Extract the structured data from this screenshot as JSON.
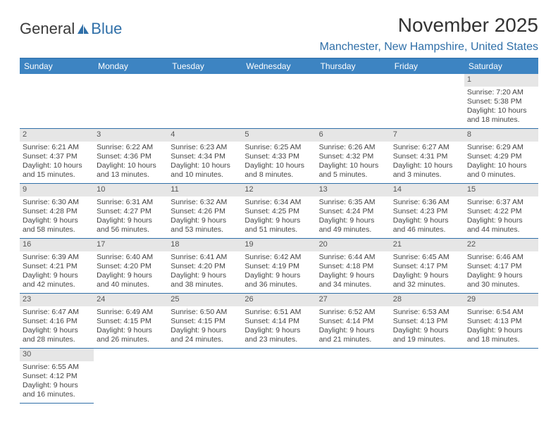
{
  "logo": {
    "text1": "General",
    "text2": "Blue"
  },
  "title": "November 2025",
  "location": "Manchester, New Hampshire, United States",
  "colors": {
    "header_bg": "#3d84c2",
    "header_text": "#ffffff",
    "accent": "#2f6fa8",
    "daynum_bg": "#e6e6e6",
    "text": "#333333"
  },
  "day_headers": [
    "Sunday",
    "Monday",
    "Tuesday",
    "Wednesday",
    "Thursday",
    "Friday",
    "Saturday"
  ],
  "first_weekday_index": 6,
  "days": [
    {
      "n": 1,
      "sunrise": "7:20 AM",
      "sunset": "5:38 PM",
      "daylight": "10 hours and 18 minutes."
    },
    {
      "n": 2,
      "sunrise": "6:21 AM",
      "sunset": "4:37 PM",
      "daylight": "10 hours and 15 minutes."
    },
    {
      "n": 3,
      "sunrise": "6:22 AM",
      "sunset": "4:36 PM",
      "daylight": "10 hours and 13 minutes."
    },
    {
      "n": 4,
      "sunrise": "6:23 AM",
      "sunset": "4:34 PM",
      "daylight": "10 hours and 10 minutes."
    },
    {
      "n": 5,
      "sunrise": "6:25 AM",
      "sunset": "4:33 PM",
      "daylight": "10 hours and 8 minutes."
    },
    {
      "n": 6,
      "sunrise": "6:26 AM",
      "sunset": "4:32 PM",
      "daylight": "10 hours and 5 minutes."
    },
    {
      "n": 7,
      "sunrise": "6:27 AM",
      "sunset": "4:31 PM",
      "daylight": "10 hours and 3 minutes."
    },
    {
      "n": 8,
      "sunrise": "6:29 AM",
      "sunset": "4:29 PM",
      "daylight": "10 hours and 0 minutes."
    },
    {
      "n": 9,
      "sunrise": "6:30 AM",
      "sunset": "4:28 PM",
      "daylight": "9 hours and 58 minutes."
    },
    {
      "n": 10,
      "sunrise": "6:31 AM",
      "sunset": "4:27 PM",
      "daylight": "9 hours and 56 minutes."
    },
    {
      "n": 11,
      "sunrise": "6:32 AM",
      "sunset": "4:26 PM",
      "daylight": "9 hours and 53 minutes."
    },
    {
      "n": 12,
      "sunrise": "6:34 AM",
      "sunset": "4:25 PM",
      "daylight": "9 hours and 51 minutes."
    },
    {
      "n": 13,
      "sunrise": "6:35 AM",
      "sunset": "4:24 PM",
      "daylight": "9 hours and 49 minutes."
    },
    {
      "n": 14,
      "sunrise": "6:36 AM",
      "sunset": "4:23 PM",
      "daylight": "9 hours and 46 minutes."
    },
    {
      "n": 15,
      "sunrise": "6:37 AM",
      "sunset": "4:22 PM",
      "daylight": "9 hours and 44 minutes."
    },
    {
      "n": 16,
      "sunrise": "6:39 AM",
      "sunset": "4:21 PM",
      "daylight": "9 hours and 42 minutes."
    },
    {
      "n": 17,
      "sunrise": "6:40 AM",
      "sunset": "4:20 PM",
      "daylight": "9 hours and 40 minutes."
    },
    {
      "n": 18,
      "sunrise": "6:41 AM",
      "sunset": "4:20 PM",
      "daylight": "9 hours and 38 minutes."
    },
    {
      "n": 19,
      "sunrise": "6:42 AM",
      "sunset": "4:19 PM",
      "daylight": "9 hours and 36 minutes."
    },
    {
      "n": 20,
      "sunrise": "6:44 AM",
      "sunset": "4:18 PM",
      "daylight": "9 hours and 34 minutes."
    },
    {
      "n": 21,
      "sunrise": "6:45 AM",
      "sunset": "4:17 PM",
      "daylight": "9 hours and 32 minutes."
    },
    {
      "n": 22,
      "sunrise": "6:46 AM",
      "sunset": "4:17 PM",
      "daylight": "9 hours and 30 minutes."
    },
    {
      "n": 23,
      "sunrise": "6:47 AM",
      "sunset": "4:16 PM",
      "daylight": "9 hours and 28 minutes."
    },
    {
      "n": 24,
      "sunrise": "6:49 AM",
      "sunset": "4:15 PM",
      "daylight": "9 hours and 26 minutes."
    },
    {
      "n": 25,
      "sunrise": "6:50 AM",
      "sunset": "4:15 PM",
      "daylight": "9 hours and 24 minutes."
    },
    {
      "n": 26,
      "sunrise": "6:51 AM",
      "sunset": "4:14 PM",
      "daylight": "9 hours and 23 minutes."
    },
    {
      "n": 27,
      "sunrise": "6:52 AM",
      "sunset": "4:14 PM",
      "daylight": "9 hours and 21 minutes."
    },
    {
      "n": 28,
      "sunrise": "6:53 AM",
      "sunset": "4:13 PM",
      "daylight": "9 hours and 19 minutes."
    },
    {
      "n": 29,
      "sunrise": "6:54 AM",
      "sunset": "4:13 PM",
      "daylight": "9 hours and 18 minutes."
    },
    {
      "n": 30,
      "sunrise": "6:55 AM",
      "sunset": "4:12 PM",
      "daylight": "9 hours and 16 minutes."
    }
  ],
  "labels": {
    "sunrise": "Sunrise:",
    "sunset": "Sunset:",
    "daylight": "Daylight:"
  }
}
